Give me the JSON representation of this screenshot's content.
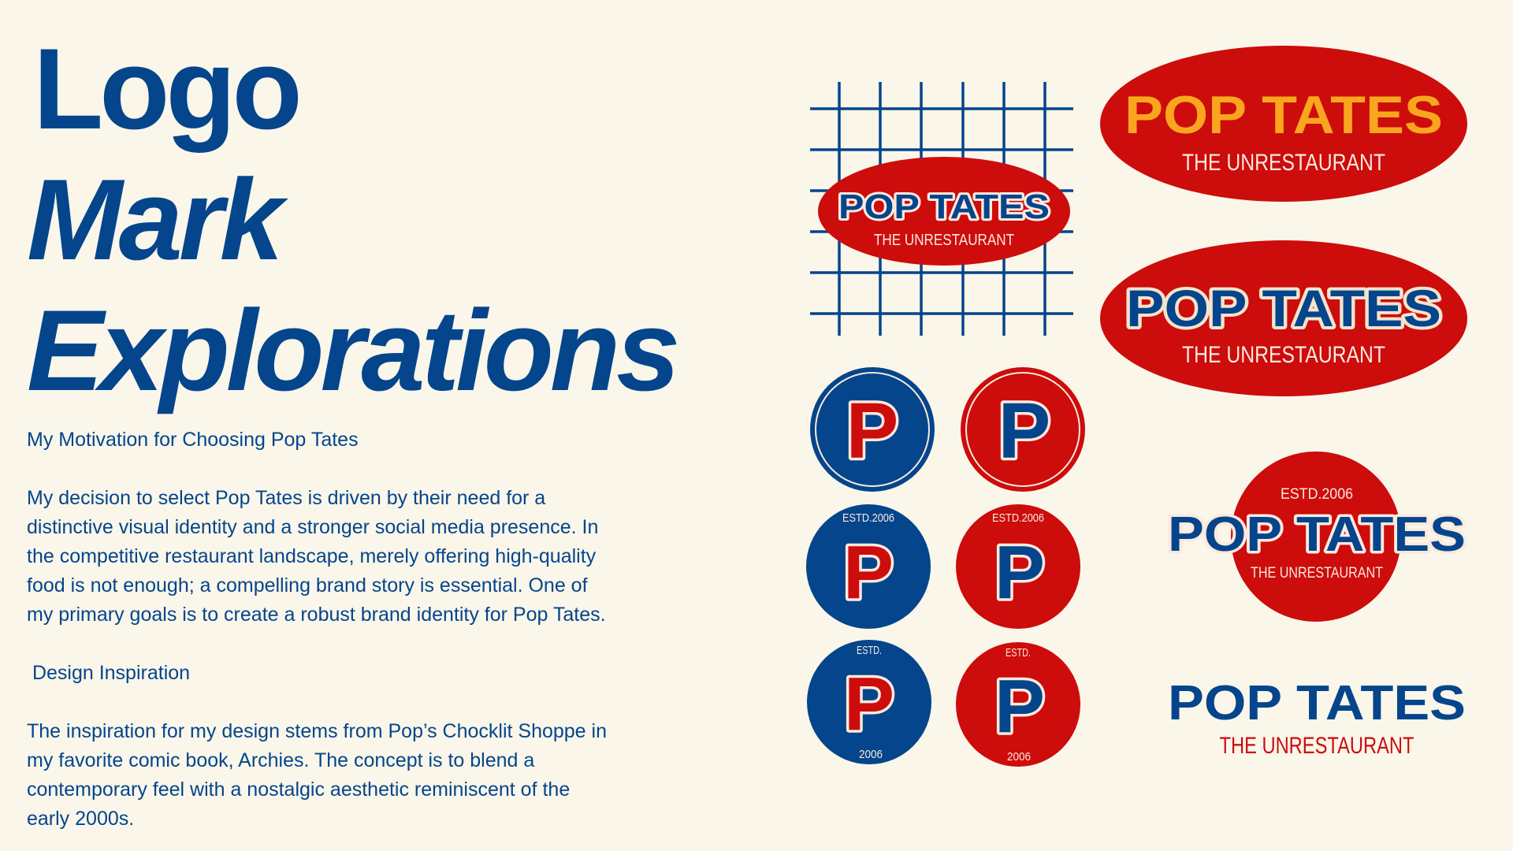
{
  "title": {
    "lines": [
      "Logo",
      "Mark",
      "Explorations"
    ]
  },
  "sections": [
    {
      "heading": "My Motivation for Choosing Pop Tates",
      "lines": [
        "My decision to select Pop Tates is driven by their need for a",
        "distinctive visual identity and a stronger social media presence. In",
        "the competitive restaurant landscape, merely offering high-quality",
        "food is not enough; a compelling brand story is essential. One of",
        "my primary goals is to create a robust brand identity for Pop Tates."
      ]
    },
    {
      "heading": " Design Inspiration",
      "lines": [
        "The inspiration for my design stems from Pop’s Chocklit Shoppe in",
        "my favorite comic book, Archies. The concept is to blend a",
        "contemporary feel with a nostalgic aesthetic reminiscent of the",
        "early 2000s."
      ]
    }
  ],
  "logos": {
    "name": "POP TATES",
    "tagline": "THE UNRESTAURANT",
    "monogram": "P",
    "estd_full": "ESTD.2006",
    "estd_short": "ESTD.",
    "year": "2006"
  },
  "colors": {
    "background": "#faf6ea",
    "blue": "#04458c",
    "red": "#cd0c0c",
    "yellow": "#f9a61e",
    "cream": "#fbe9dd"
  }
}
